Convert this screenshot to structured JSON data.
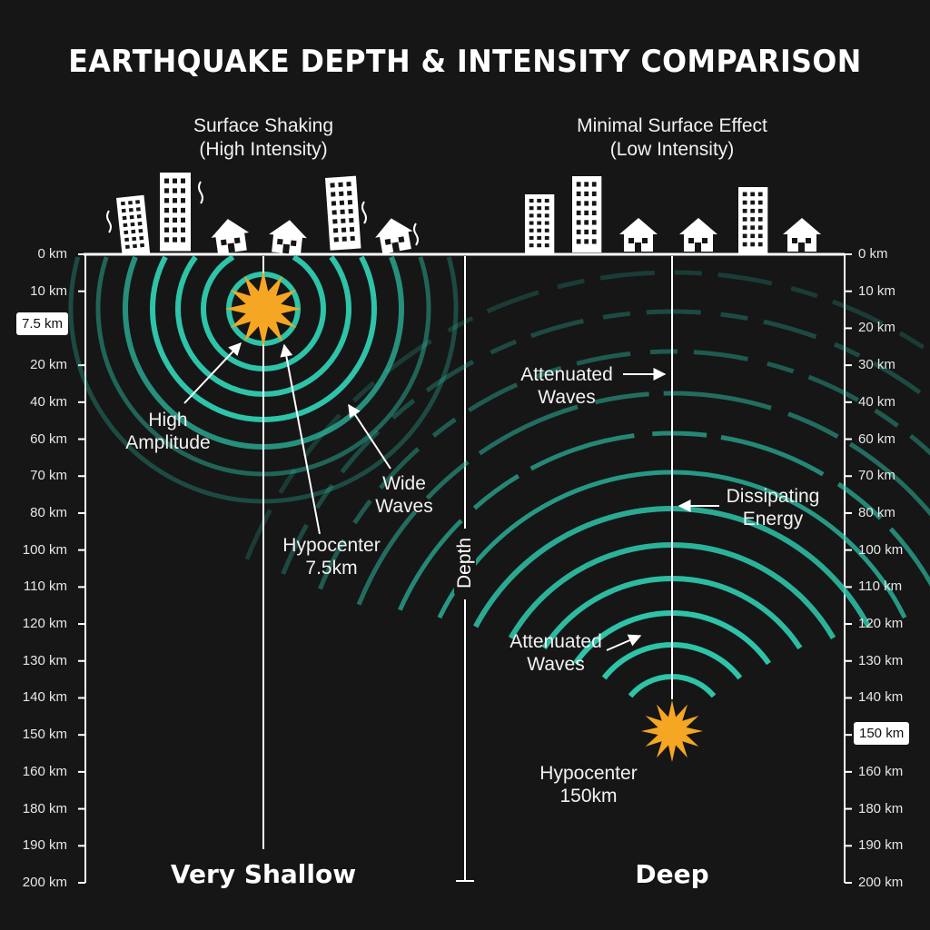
{
  "title": "EARTHQUAKE DEPTH & INTENSITY COMPARISON",
  "left_panel": {
    "caption_line1": "Surface Shaking",
    "caption_line2": "(High Intensity)",
    "label": "Very Shallow",
    "note_amplitude_line1": "High",
    "note_amplitude_line2": "Amplitude",
    "note_waves_line1": "Wide",
    "note_waves_line2": "Waves",
    "hypocenter_line1": "Hypocenter",
    "hypocenter_line2": "7.5km",
    "depth_callout": "7.5 km"
  },
  "right_panel": {
    "caption_line1": "Minimal Surface Effect",
    "caption_line2": "(Low Intensity)",
    "label": "Deep",
    "note_attenuated_top_line1": "Attenuated",
    "note_attenuated_top_line2": "Waves",
    "note_dissipating_line1": "Dissipating",
    "note_dissipating_line2": "Energy",
    "note_attenuated_bottom_line1": "Attenuated",
    "note_attenuated_bottom_line2": "Waves",
    "hypocenter_line1": "Hypocenter",
    "hypocenter_line2": "150km",
    "depth_callout": "150 km"
  },
  "center_axis_label": "Depth",
  "left_scale": [
    "0 km",
    "10 km",
    "20 km",
    "40 km",
    "60 km",
    "70 km",
    "80 km",
    "100 km",
    "110 km",
    "120 km",
    "130 km",
    "140 km",
    "150 km",
    "160 km",
    "180 km",
    "190 km",
    "200 km"
  ],
  "right_scale": [
    "0 km",
    "10 km",
    "20 km",
    "30 km",
    "40 km",
    "60 km",
    "70 km",
    "80 km",
    "100 km",
    "110 km",
    "120 km",
    "130 km",
    "140 km",
    "150 km",
    "160 km",
    "180 km",
    "190 km",
    "200 km"
  ],
  "colors": {
    "background": "#161616",
    "wave": "#2ec4a9",
    "star": "#f5a623",
    "line": "#ffffff"
  }
}
